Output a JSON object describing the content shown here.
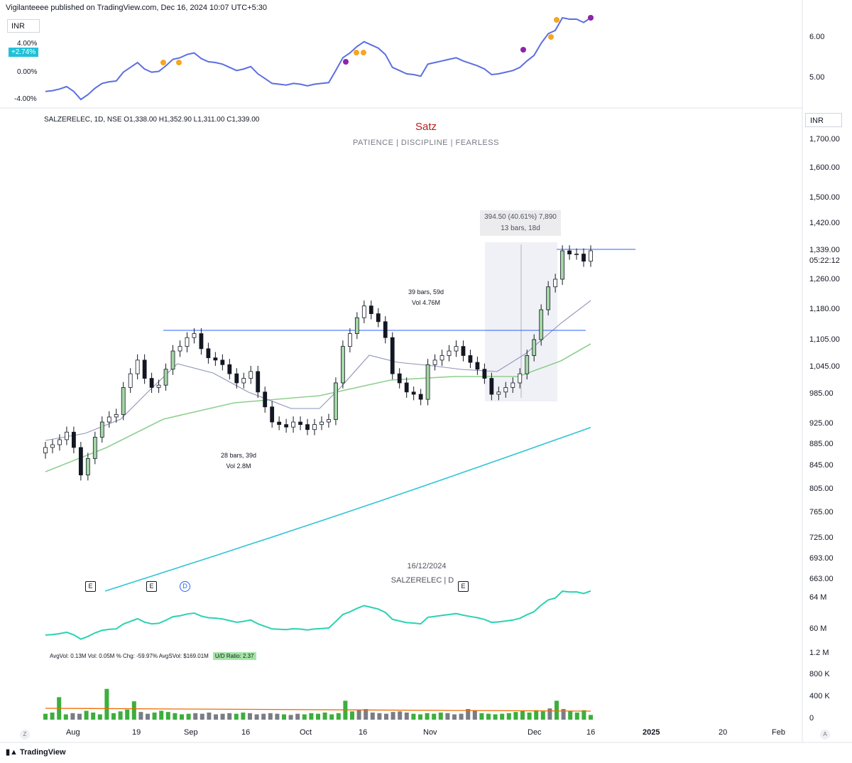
{
  "header": {
    "published": "Vigilanteeee published on TradingView.com, Dec 16, 2024 10:07 UTC+5:30"
  },
  "rs_pane": {
    "currency": "INR",
    "change_tag": "+2.74%",
    "pct_labels": [
      "4.00%",
      "0.00%",
      "-4.00%"
    ],
    "right_axis": [
      "6.00",
      "5.00"
    ]
  },
  "symbol_line": "SALZERELEC, 1D, NSE  O1,338.00  H1,352.90  L1,311.00  C1,339.00",
  "branding": {
    "title": "Satz",
    "tagline": "PATIENCE  |  DISCIPLINE  |  FEARLESS"
  },
  "main_pane": {
    "currency": "INR",
    "price_axis": [
      "1,700.00",
      "1,600.00",
      "1,500.00",
      "1,420.00",
      "1,339.00",
      "05:22:12",
      "1,260.00",
      "1,180.00",
      "1,105.00",
      "1,045.00",
      "985.00",
      "925.00",
      "885.00",
      "845.00",
      "805.00",
      "765.00",
      "725.00",
      "693.00",
      "663.00"
    ],
    "annotations": {
      "base1": [
        "28 bars, 39d",
        "Vol 2.8M"
      ],
      "base2": [
        "39 bars, 59d",
        "Vol 4.76M"
      ],
      "measure": [
        "394.50 (40.61%) 7,890",
        "13 bars, 18d"
      ]
    },
    "watermark": [
      "16/12/2024",
      "SALZERELEC | D"
    ],
    "events": [
      "E",
      "E",
      "D",
      "E"
    ]
  },
  "obv_axis": [
    "64 M",
    "60 M"
  ],
  "volume_pane": {
    "stats": "AvgVol: 0.13M   Vol: 0.05M   % Chg: -59.97%   AvgSVol: $169.01M",
    "ud_ratio": "U/D Ratio: 2.37",
    "axis": [
      "1.2 M",
      "800 K",
      "400 K",
      "0"
    ]
  },
  "time_axis": [
    "Aug",
    "19",
    "Sep",
    "16",
    "Oct",
    "16",
    "Nov",
    "Dec",
    "16",
    "2025",
    "20",
    "Feb"
  ],
  "footer": {
    "brand": "TradingView"
  },
  "colors": {
    "up": "#2e9e3e",
    "down": "#131722",
    "ma_long": "#2ec4d6",
    "ma_mid": "#8fcf8f",
    "rs_blue": "#5b6fe0",
    "rs_red": "#e0507a"
  },
  "chart_data": [
    {
      "type": "candlestick",
      "symbol": "SALZERELEC",
      "timeframe": "1D",
      "ohlc_last": {
        "open": 1338.0,
        "high": 1352.9,
        "low": 1311.0,
        "close": 1339.0
      },
      "ylim": [
        663,
        1700
      ],
      "closes_approx": [
        880,
        885,
        895,
        910,
        880,
        830,
        860,
        900,
        930,
        940,
        945,
        1000,
        1030,
        1060,
        1020,
        1000,
        1005,
        1040,
        1080,
        1090,
        1110,
        1120,
        1085,
        1065,
        1060,
        1050,
        1030,
        1010,
        1020,
        1035,
        990,
        960,
        930,
        925,
        920,
        930,
        925,
        915,
        925,
        930,
        935,
        1010,
        1090,
        1120,
        1160,
        1190,
        1170,
        1150,
        1110,
        1030,
        1010,
        990,
        985,
        975,
        1050,
        1060,
        1070,
        1080,
        1090,
        1070,
        1055,
        1040,
        1020,
        985,
        990,
        1000,
        1010,
        1030,
        1070,
        1105,
        1180,
        1240,
        1260,
        1339,
        1330,
        1330,
        1310,
        1339
      ],
      "reference_line": 1125,
      "measured_move": {
        "change": 394.5,
        "percent": 40.61,
        "bars": 13,
        "days": 18
      }
    },
    {
      "type": "bar",
      "name": "Volume",
      "values_k": [
        100,
        120,
        380,
        90,
        110,
        100,
        150,
        120,
        90,
        520,
        110,
        140,
        170,
        310,
        130,
        100,
        120,
        150,
        130,
        110,
        90,
        100,
        110,
        100,
        120,
        90,
        100,
        110,
        100,
        120,
        110,
        90,
        100,
        110,
        100,
        90,
        80,
        100,
        90,
        110,
        100,
        120,
        90,
        110,
        320,
        140,
        170,
        180,
        120,
        110,
        100,
        130,
        140,
        120,
        100,
        90,
        110,
        100,
        120,
        110,
        90,
        100,
        180,
        160,
        110,
        100,
        90,
        100,
        110,
        130,
        150,
        120,
        160,
        140,
        190,
        320,
        180,
        140,
        120,
        160,
        80
      ]
    }
  ]
}
